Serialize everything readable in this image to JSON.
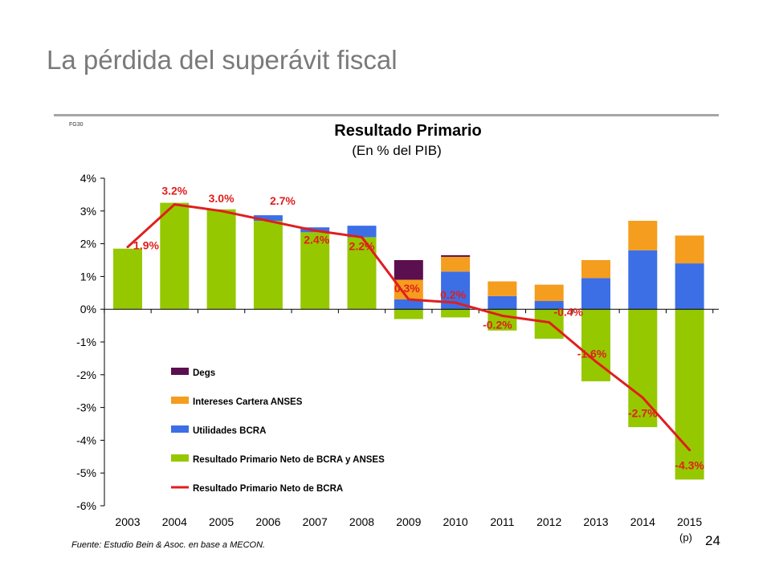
{
  "slide": {
    "title": "La pérdida del superávit fiscal",
    "page_number": "24"
  },
  "chart_data": {
    "type": "bar",
    "title": "Resultado Primario",
    "subtitle": "(En % del PIB)",
    "corner_code": "FG30",
    "source": "Fuente: Estudio Bein & Asoc. en base a MECON.",
    "projection_note": "(p)",
    "categories": [
      "2003",
      "2004",
      "2005",
      "2006",
      "2007",
      "2008",
      "2009",
      "2010",
      "2011",
      "2012",
      "2013",
      "2014",
      "2015"
    ],
    "ylim": [
      -6,
      4
    ],
    "yticks": [
      "4%",
      "3%",
      "2%",
      "1%",
      "0%",
      "-1%",
      "-2%",
      "-3%",
      "-4%",
      "-5%",
      "-6%"
    ],
    "stacked": true,
    "series": [
      {
        "name": "Degs",
        "color": "#5b0f4f",
        "values": [
          0,
          0,
          0,
          0,
          0,
          0,
          0.6,
          0.05,
          0,
          0,
          0,
          0,
          0
        ]
      },
      {
        "name": "Intereses Cartera ANSES",
        "color": "#f59d1e",
        "values": [
          0,
          0,
          0,
          0,
          0,
          0,
          0.6,
          0.45,
          0.45,
          0.5,
          0.55,
          0.9,
          0.85
        ]
      },
      {
        "name": "Utilidades BCRA",
        "color": "#3c6fe6",
        "values": [
          0,
          0,
          0,
          0.17,
          0.15,
          0.35,
          0.3,
          1.15,
          0.4,
          0.25,
          0.95,
          1.8,
          1.4
        ]
      },
      {
        "name": "Resultado Primario Neto de BCRA y ANSES",
        "color": "#96c800",
        "values": [
          1.85,
          3.25,
          3.05,
          2.7,
          2.35,
          2.2,
          -0.3,
          -0.25,
          -0.65,
          -0.9,
          -2.2,
          -3.6,
          -5.2
        ]
      }
    ],
    "line_series": {
      "name": "Resultado Primario Neto de BCRA",
      "color": "#e01e1e",
      "values": [
        1.9,
        3.2,
        3.0,
        2.7,
        2.4,
        2.2,
        0.3,
        0.2,
        -0.2,
        -0.4,
        -1.6,
        -2.7,
        -4.3
      ],
      "labels": [
        "1.9%",
        "3.2%",
        "3.0%",
        "2.7%",
        "2.4%",
        "2.2%",
        "0.3%",
        "0.2%",
        "-0.2%",
        "-0.4%",
        "-1.6%",
        "-2.7%",
        "-4.3%"
      ]
    },
    "legend_position": "lower-left"
  }
}
